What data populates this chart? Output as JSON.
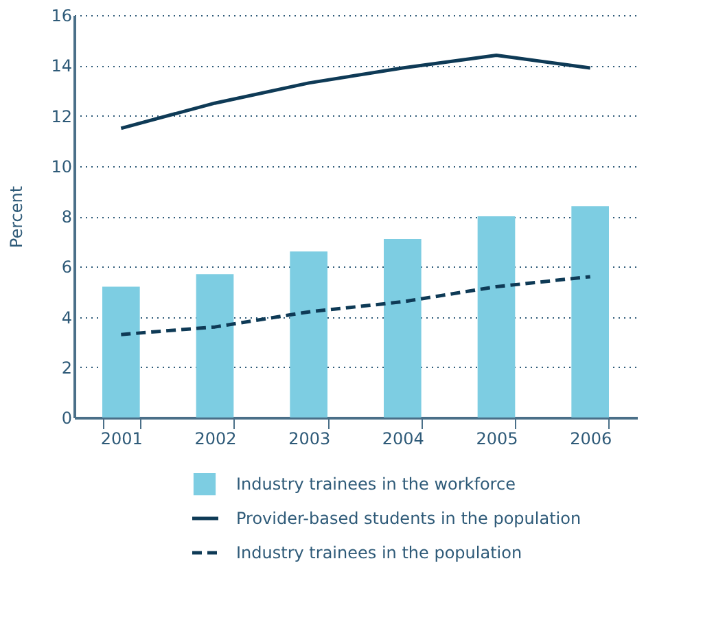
{
  "chart_data": {
    "type": "bar",
    "ylabel": "Percent",
    "categories": [
      "2001",
      "2002",
      "2003",
      "2004",
      "2005",
      "2006"
    ],
    "series": [
      {
        "name": "Industry trainees in the workforce",
        "color": "#7dcde2",
        "values": [
          5.2,
          5.7,
          6.6,
          7.1,
          8.0,
          8.4
        ]
      },
      {
        "name": "Provider-based students in the population",
        "type": "line",
        "line_style": "solid",
        "color": "#0e3a56",
        "values": [
          11.5,
          12.5,
          13.3,
          13.9,
          14.4,
          13.9
        ]
      },
      {
        "name": "Industry trainees in the population",
        "type": "line",
        "line_style": "dashed",
        "color": "#0e3a56",
        "values": [
          3.3,
          3.6,
          4.2,
          4.6,
          5.2,
          5.6
        ]
      }
    ],
    "ylim": [
      0,
      16
    ],
    "yticks": [
      0,
      2,
      4,
      6,
      8,
      10,
      12,
      14,
      16
    ],
    "grid": "y",
    "legend": "bottom"
  }
}
